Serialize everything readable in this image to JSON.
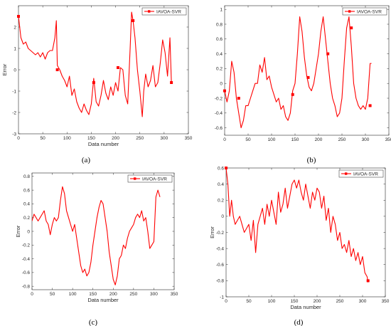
{
  "chart_data": [
    {
      "type": "line",
      "panel_label": "(a)",
      "xlabel": "Data number",
      "ylabel": "Error",
      "xlim": [
        0,
        350
      ],
      "ylim": [
        -3,
        3
      ],
      "xticks": [
        "0",
        "50",
        "100",
        "150",
        "200",
        "250",
        "300",
        "350"
      ],
      "yticks": [
        "-3",
        "-2",
        "-1",
        "0",
        "1",
        "2"
      ],
      "legend": "top-right",
      "series": [
        {
          "name": "IAVOA-SVR",
          "color": "#ff0000",
          "x": [
            0,
            5,
            10,
            15,
            20,
            25,
            30,
            35,
            40,
            45,
            50,
            55,
            60,
            65,
            70,
            75,
            78,
            80,
            85,
            90,
            95,
            100,
            105,
            110,
            115,
            120,
            125,
            130,
            135,
            140,
            145,
            150,
            155,
            160,
            165,
            170,
            175,
            180,
            185,
            190,
            195,
            200,
            205,
            210,
            215,
            220,
            225,
            230,
            233,
            236,
            240,
            245,
            250,
            255,
            258,
            262,
            267,
            272,
            277,
            282,
            287,
            292,
            297,
            302,
            307,
            312,
            315
          ],
          "y": [
            2.5,
            1.5,
            1.2,
            1.3,
            1.0,
            0.9,
            0.8,
            0.7,
            0.8,
            0.6,
            0.8,
            0.5,
            0.8,
            0.9,
            0.9,
            1.5,
            2.3,
            0.2,
            0.0,
            -0.3,
            -0.5,
            -0.8,
            -0.3,
            -1.2,
            -0.9,
            -1.5,
            -1.8,
            -2.0,
            -1.6,
            -1.9,
            -2.1,
            -1.6,
            -0.4,
            -1.5,
            -1.7,
            -1.2,
            -0.5,
            -1.1,
            -1.4,
            -0.8,
            -1.2,
            -0.6,
            -1.0,
            0.1,
            0.0,
            -1.2,
            -1.6,
            1.0,
            2.7,
            2.3,
            1.5,
            0.0,
            -1.0,
            -2.2,
            -1.0,
            -0.2,
            -0.8,
            -0.5,
            0.2,
            -0.8,
            -0.6,
            0.3,
            1.4,
            0.8,
            -0.3,
            1.5,
            -0.6
          ],
          "markers": [
            [
              0,
              2.5
            ],
            [
              80,
              0.0
            ],
            [
              155,
              -0.6
            ],
            [
              205,
              0.1
            ],
            [
              236,
              2.3
            ],
            [
              315,
              -0.6
            ]
          ]
        }
      ]
    },
    {
      "type": "line",
      "panel_label": "(b)",
      "xlabel": "",
      "ylabel": "",
      "xlim": [
        0,
        350
      ],
      "ylim": [
        -0.7,
        1.05
      ],
      "xticks": [
        "0",
        "50",
        "100",
        "150",
        "200",
        "250",
        "300",
        "350"
      ],
      "yticks": [
        "-0.6",
        "-0.4",
        "-0.2",
        "0",
        "0.2",
        "0.4",
        "0.6",
        "0.8",
        "1"
      ],
      "legend": "top-right",
      "series": [
        {
          "name": "IAVOA-SVR",
          "color": "#ff0000",
          "x": [
            0,
            5,
            10,
            15,
            20,
            25,
            30,
            35,
            40,
            45,
            50,
            55,
            60,
            65,
            70,
            75,
            80,
            85,
            90,
            95,
            100,
            105,
            110,
            115,
            120,
            125,
            130,
            135,
            140,
            145,
            150,
            155,
            160,
            165,
            170,
            175,
            180,
            185,
            190,
            195,
            200,
            205,
            210,
            215,
            220,
            225,
            230,
            235,
            240,
            245,
            250,
            255,
            260,
            265,
            270,
            275,
            280,
            285,
            290,
            295,
            300,
            305,
            310,
            313
          ],
          "y": [
            -0.1,
            -0.25,
            -0.1,
            0.3,
            0.15,
            -0.2,
            -0.4,
            -0.6,
            -0.5,
            -0.3,
            -0.3,
            -0.2,
            -0.1,
            0.0,
            0.0,
            0.25,
            0.15,
            0.35,
            0.05,
            0.1,
            -0.05,
            -0.15,
            -0.25,
            -0.2,
            -0.35,
            -0.3,
            -0.45,
            -0.5,
            -0.4,
            -0.1,
            0.0,
            0.4,
            0.9,
            0.7,
            0.35,
            0.1,
            -0.05,
            -0.1,
            0.0,
            0.2,
            0.4,
            0.7,
            0.9,
            0.6,
            0.3,
            0.0,
            -0.2,
            -0.3,
            -0.45,
            -0.4,
            -0.2,
            0.3,
            0.75,
            0.9,
            0.5,
            0.0,
            -0.2,
            -0.3,
            -0.35,
            -0.3,
            -0.35,
            -0.2,
            0.27,
            0.27
          ],
          "markers": [
            [
              0,
              -0.1
            ],
            [
              30,
              -0.2
            ],
            [
              145,
              -0.15
            ],
            [
              178,
              0.08
            ],
            [
              220,
              0.4
            ],
            [
              270,
              0.75
            ],
            [
              310,
              -0.3
            ]
          ]
        }
      ]
    },
    {
      "type": "line",
      "panel_label": "(c)",
      "xlabel": "Data number",
      "ylabel": "Error",
      "xlim": [
        0,
        350
      ],
      "ylim": [
        -0.85,
        0.85
      ],
      "xticks": [
        "0",
        "50",
        "100",
        "150",
        "200",
        "250",
        "300",
        "350"
      ],
      "yticks": [
        "-0.8",
        "-0.6",
        "-0.4",
        "-0.2",
        "0",
        "0.2",
        "0.4",
        "0.6",
        "0.8"
      ],
      "legend": "top-right",
      "series": [
        {
          "name": "IAVOA-SVR",
          "color": "#ff0000",
          "x": [
            0,
            5,
            10,
            15,
            20,
            25,
            30,
            35,
            40,
            45,
            50,
            55,
            60,
            65,
            70,
            75,
            80,
            85,
            90,
            95,
            100,
            105,
            110,
            115,
            120,
            125,
            130,
            135,
            140,
            145,
            150,
            155,
            160,
            165,
            170,
            175,
            180,
            185,
            190,
            195,
            200,
            205,
            210,
            215,
            220,
            225,
            230,
            235,
            240,
            245,
            250,
            255,
            260,
            265,
            270,
            275,
            280,
            285,
            290,
            295,
            300,
            305,
            310,
            315
          ],
          "y": [
            0.15,
            0.25,
            0.2,
            0.15,
            0.2,
            0.25,
            0.3,
            0.15,
            0.1,
            -0.05,
            0.1,
            0.2,
            0.15,
            0.2,
            0.45,
            0.65,
            0.55,
            0.3,
            0.2,
            0.1,
            0.0,
            0.1,
            -0.1,
            -0.3,
            -0.5,
            -0.6,
            -0.55,
            -0.65,
            -0.6,
            -0.45,
            -0.2,
            0.0,
            0.2,
            0.35,
            0.45,
            0.4,
            0.2,
            0.0,
            -0.3,
            -0.5,
            -0.7,
            -0.78,
            -0.65,
            -0.4,
            -0.35,
            -0.2,
            -0.25,
            -0.1,
            0.0,
            0.05,
            0.1,
            0.2,
            0.25,
            0.2,
            0.3,
            0.15,
            0.2,
            0.0,
            -0.25,
            -0.2,
            -0.15,
            0.5,
            0.6,
            0.5
          ],
          "markers": []
        }
      ]
    },
    {
      "type": "line",
      "panel_label": "(d)",
      "xlabel": "Data number",
      "ylabel": "Error",
      "xlim": [
        0,
        350
      ],
      "ylim": [
        -1,
        0.6
      ],
      "xticks": [
        "0",
        "50",
        "100",
        "150",
        "200",
        "250",
        "300",
        "350"
      ],
      "yticks": [
        "-1",
        "-0.8",
        "-0.6",
        "-0.4",
        "-0.2",
        "0",
        "0.2",
        "0.4",
        "0.6"
      ],
      "legend": "top-right",
      "series": [
        {
          "name": "IAVOA-SVR",
          "color": "#ff0000",
          "x": [
            0,
            4,
            8,
            12,
            16,
            20,
            25,
            30,
            35,
            40,
            45,
            50,
            55,
            60,
            65,
            70,
            75,
            80,
            85,
            90,
            95,
            100,
            105,
            110,
            115,
            120,
            125,
            130,
            135,
            140,
            145,
            150,
            155,
            160,
            165,
            170,
            175,
            180,
            185,
            190,
            195,
            200,
            205,
            210,
            215,
            220,
            225,
            230,
            235,
            240,
            245,
            250,
            255,
            260,
            265,
            270,
            275,
            280,
            285,
            290,
            295,
            300,
            305,
            310,
            312
          ],
          "y": [
            0.6,
            0.4,
            0.0,
            0.2,
            0.0,
            -0.1,
            -0.05,
            0.0,
            -0.1,
            -0.2,
            -0.15,
            -0.1,
            -0.3,
            -0.05,
            -0.45,
            -0.1,
            0.0,
            0.1,
            -0.1,
            0.15,
            0.0,
            0.2,
            0.05,
            -0.1,
            0.3,
            0.05,
            0.15,
            0.35,
            0.1,
            0.25,
            0.4,
            0.45,
            0.35,
            0.45,
            0.3,
            0.2,
            0.4,
            0.25,
            0.1,
            0.3,
            0.2,
            0.35,
            0.3,
            0.1,
            0.25,
            -0.05,
            0.1,
            -0.2,
            0.0,
            -0.1,
            -0.3,
            -0.2,
            -0.4,
            -0.35,
            -0.45,
            -0.3,
            -0.5,
            -0.4,
            -0.55,
            -0.45,
            -0.6,
            -0.5,
            -0.7,
            -0.75,
            -0.82
          ],
          "markers": [
            [
              0,
              0.6
            ],
            [
              312,
              -0.8
            ]
          ]
        }
      ]
    }
  ]
}
